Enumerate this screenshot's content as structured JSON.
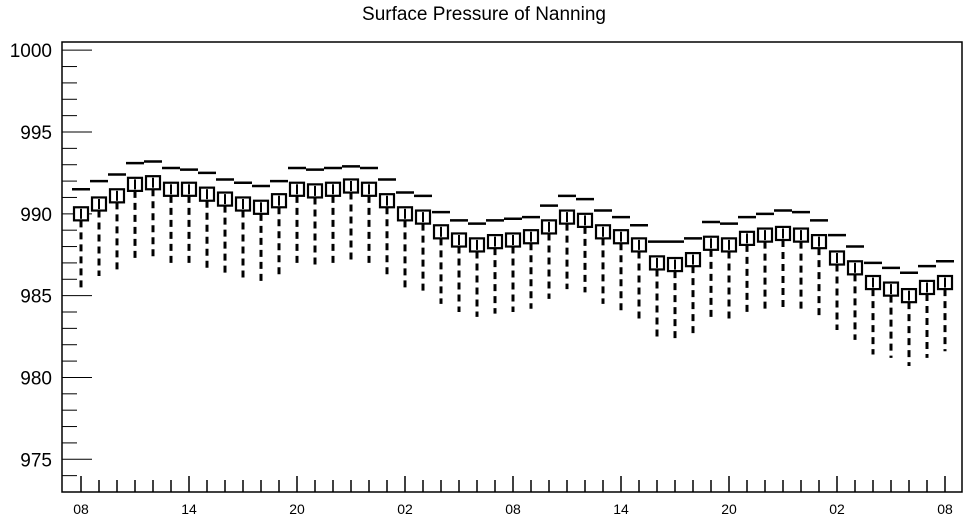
{
  "chart_data": {
    "type": "box",
    "title": "Surface Pressure of Nanning",
    "xlabel": "",
    "ylabel": "",
    "ylim": [
      973,
      1000.5
    ],
    "y_ticks": [
      975,
      980,
      985,
      990,
      995,
      1000
    ],
    "x_tick_labels": [
      "08",
      "14",
      "20",
      "02",
      "08",
      "14",
      "20",
      "02",
      "08"
    ],
    "x_tick_positions": [
      0,
      6,
      12,
      18,
      24,
      30,
      36,
      42,
      48
    ],
    "hours": [
      0,
      1,
      2,
      3,
      4,
      5,
      6,
      7,
      8,
      9,
      10,
      11,
      12,
      13,
      14,
      15,
      16,
      17,
      18,
      19,
      20,
      21,
      22,
      23,
      24,
      25,
      26,
      27,
      28,
      29,
      30,
      31,
      32,
      33,
      34,
      35,
      36,
      37,
      38,
      39,
      40,
      41,
      42,
      43,
      44,
      45,
      46,
      47,
      48
    ],
    "median": [
      990.0,
      990.6,
      991.1,
      991.8,
      991.9,
      991.5,
      991.5,
      991.2,
      990.9,
      990.6,
      990.4,
      990.8,
      991.5,
      991.4,
      991.5,
      991.7,
      991.5,
      990.8,
      990.0,
      989.8,
      988.9,
      988.4,
      988.1,
      988.3,
      988.4,
      988.6,
      989.2,
      989.8,
      989.6,
      988.9,
      988.6,
      988.1,
      987.0,
      986.9,
      987.2,
      988.2,
      988.1,
      988.5,
      988.7,
      988.8,
      988.7,
      988.3,
      987.3,
      986.7,
      985.8,
      985.4,
      985.0,
      985.5,
      985.8
    ],
    "box_low": [
      989.6,
      990.2,
      990.7,
      991.4,
      991.5,
      991.1,
      991.1,
      990.8,
      990.5,
      990.2,
      990.0,
      990.4,
      991.1,
      991.0,
      991.1,
      991.3,
      991.1,
      990.4,
      989.6,
      989.4,
      988.5,
      988.0,
      987.7,
      987.9,
      988.0,
      988.2,
      988.8,
      989.4,
      989.2,
      988.5,
      988.2,
      987.7,
      986.6,
      986.5,
      986.8,
      987.8,
      987.7,
      988.1,
      988.3,
      988.4,
      988.3,
      987.9,
      986.9,
      986.3,
      985.4,
      985.0,
      984.6,
      985.1,
      985.4
    ],
    "box_high": [
      990.4,
      991.0,
      991.5,
      992.2,
      992.3,
      991.9,
      991.9,
      991.6,
      991.3,
      991.0,
      990.8,
      991.2,
      991.9,
      991.8,
      991.9,
      992.1,
      991.9,
      991.2,
      990.4,
      990.2,
      989.3,
      988.8,
      988.5,
      988.7,
      988.8,
      989.0,
      989.6,
      990.2,
      990.0,
      989.3,
      989.0,
      988.5,
      987.4,
      987.3,
      987.6,
      988.6,
      988.5,
      988.9,
      989.1,
      989.2,
      989.1,
      988.7,
      987.7,
      987.1,
      986.2,
      985.8,
      985.4,
      985.9,
      986.2
    ],
    "whisker_low": [
      985.5,
      986.2,
      986.6,
      987.3,
      987.4,
      986.9,
      986.9,
      986.6,
      986.3,
      986.1,
      985.9,
      986.2,
      986.8,
      986.8,
      986.9,
      987.0,
      986.9,
      986.2,
      985.5,
      985.2,
      984.5,
      984.0,
      983.7,
      983.9,
      984.0,
      984.2,
      984.8,
      985.4,
      985.2,
      984.5,
      984.1,
      983.5,
      982.5,
      982.4,
      982.6,
      983.6,
      983.5,
      983.9,
      984.1,
      984.2,
      984.1,
      983.7,
      982.9,
      982.3,
      981.4,
      981.2,
      980.7,
      981.2,
      981.6
    ],
    "whisker_high": [
      991.5,
      992.0,
      992.4,
      993.1,
      993.2,
      992.8,
      992.7,
      992.5,
      992.1,
      991.9,
      991.7,
      992.0,
      992.8,
      992.7,
      992.8,
      992.9,
      992.8,
      992.1,
      991.3,
      991.1,
      990.1,
      989.6,
      989.4,
      989.6,
      989.7,
      989.8,
      990.5,
      991.1,
      990.9,
      990.2,
      989.8,
      989.3,
      988.3,
      988.3,
      988.5,
      989.5,
      989.4,
      989.8,
      990.0,
      990.2,
      990.1,
      989.6,
      988.7,
      988.0,
      987.0,
      986.7,
      986.4,
      986.8,
      987.1
    ]
  }
}
